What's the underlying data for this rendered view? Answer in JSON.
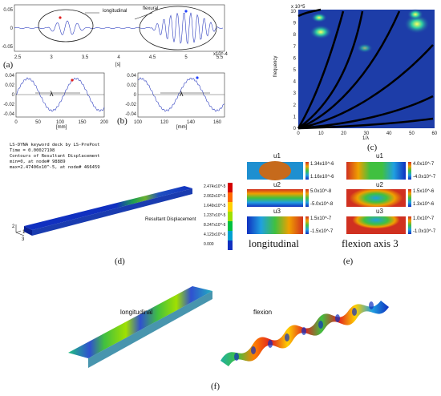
{
  "panel_a": {
    "label": "(a)",
    "annot_longitudinal": "longitudinal",
    "annot_flexural": "flexural",
    "xticks": [
      "2.5",
      "3",
      "3.5",
      "4",
      "4.5",
      "5",
      "5.5"
    ],
    "yticks": [
      "0.05",
      "0",
      "-0.05"
    ],
    "xexp": "x10^-4",
    "xunit": "[s]"
  },
  "panel_b": {
    "label": "(b)",
    "left": {
      "yticks": [
        "0.04",
        "0.02",
        "0",
        "-0.02",
        "-0.04"
      ],
      "xticks": [
        "0",
        "50",
        "100",
        "150",
        "200"
      ],
      "xunit": "[mm]",
      "lambda": "λ"
    },
    "right": {
      "yticks": [
        "0.04",
        "0.02",
        "0",
        "-0.02",
        "-0.04"
      ],
      "xticks": [
        "100",
        "120",
        "140",
        "160"
      ],
      "xunit": "[mm]",
      "lambda": "λ"
    }
  },
  "panel_c": {
    "label": "(c)",
    "ylabel": "frequency",
    "xlabel": "1/λ",
    "yexp": "x 10^5",
    "yticks": [
      "10",
      "9",
      "8",
      "7",
      "6",
      "5",
      "4",
      "3",
      "2",
      "1",
      "0"
    ],
    "xticks": [
      "0",
      "10",
      "20",
      "30",
      "40",
      "50",
      "60"
    ]
  },
  "panel_d": {
    "label": "(d)",
    "header": [
      "LS-DYNA keyword deck by LS-PrePost",
      "Time = 0.00027198",
      "Contours of Resultant Displacement",
      "min=0, at node# 98889",
      "max=2.47406x10^-5, at node# 466459"
    ],
    "legend_title": "Resultant Displacement",
    "colorbar": [
      {
        "label": "2.474x10^-5",
        "color": "#d40000"
      },
      {
        "label": "2.062x10^-5",
        "color": "#ff6a00"
      },
      {
        "label": "1.649x10^-5",
        "color": "#ffd000"
      },
      {
        "label": "1.237x10^-5",
        "color": "#9ee000"
      },
      {
        "label": "8.247x10^-6",
        "color": "#00c040"
      },
      {
        "label": "4.123x10^-6",
        "color": "#00a0d0"
      },
      {
        "label": "0.000",
        "color": "#1030c0"
      }
    ],
    "axes": {
      "z": "2",
      "x": "3",
      "y": "1"
    }
  },
  "panel_e": {
    "label": "(e)",
    "left_caption": "longitudinal",
    "right_caption": "flexion axis 3",
    "left": [
      {
        "title": "u1",
        "max": "1.34x10^-6",
        "min": "1.16x10^-6"
      },
      {
        "title": "u2",
        "max": "5.0x10^-8",
        "min": "-5.0x10^-8"
      },
      {
        "title": "u3",
        "max": "1.5x10^-7",
        "min": "-1.5x10^-7"
      }
    ],
    "right": [
      {
        "title": "u1",
        "max": "4.0x10^-7",
        "min": "-4.0x10^-7"
      },
      {
        "title": "u2",
        "max": "1.5x10^-6",
        "min": "1.3x10^-6"
      },
      {
        "title": "u3",
        "max": "1.0x10^-7",
        "min": "-1.0x10^-7"
      }
    ]
  },
  "panel_f": {
    "label": "(f)",
    "left_label": "longitudinal",
    "right_label": "flexion"
  }
}
